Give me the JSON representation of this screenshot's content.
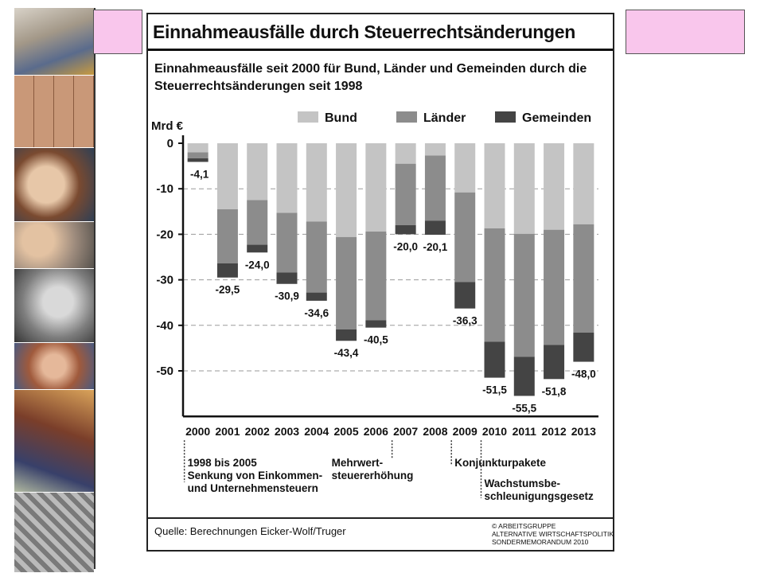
{
  "figure": {
    "title": "Einnahmeausfälle durch Steuerrechtsänderungen",
    "subtitle": "Einnahmeausfälle seit 2000 für Bund, Länder und Gemeinden durch die Steuerrechtsänderungen seit 1998",
    "source": "Quelle:  Berechnungen Eicker-Wolf/Truger",
    "credit_lines": [
      "© ARBEITSGRUPPE",
      "ALTERNATIVE WIRTSCHAFTSPOLITIK",
      "SONDERMEMORANDUM 2010"
    ]
  },
  "chart_data": {
    "type": "bar",
    "stacked": true,
    "direction": "negative",
    "ylabel": "Mrd €",
    "ylim": [
      -60,
      0
    ],
    "yticks": [
      0,
      -10,
      -20,
      -30,
      -40,
      -50
    ],
    "grid": true,
    "legend_position": "top",
    "categories": [
      "2000",
      "2001",
      "2002",
      "2003",
      "2004",
      "2005",
      "2006",
      "2007",
      "2008",
      "2009",
      "2010",
      "2011",
      "2012",
      "2013"
    ],
    "series": [
      {
        "name": "Bund",
        "color": "#c4c4c4",
        "values": [
          -2.0,
          -14.5,
          -12.5,
          -15.3,
          -17.2,
          -20.6,
          -19.4,
          -4.5,
          -2.7,
          -10.8,
          -18.7,
          -19.9,
          -19.0,
          -17.8
        ]
      },
      {
        "name": "Länder",
        "color": "#8c8c8c",
        "values": [
          -1.3,
          -11.9,
          -9.8,
          -13.1,
          -15.6,
          -20.3,
          -19.5,
          -13.5,
          -14.3,
          -19.7,
          -24.9,
          -27.0,
          -25.3,
          -23.8
        ]
      },
      {
        "name": "Gemeinden",
        "color": "#444444",
        "values": [
          -0.8,
          -3.1,
          -1.7,
          -2.5,
          -1.8,
          -2.5,
          -1.6,
          -2.0,
          -3.1,
          -5.8,
          -7.9,
          -8.6,
          -7.5,
          -6.4
        ]
      }
    ],
    "totals": [
      -4.1,
      -29.5,
      -24.0,
      -30.9,
      -34.6,
      -43.4,
      -40.5,
      -20.0,
      -20.1,
      -36.3,
      -51.5,
      -55.5,
      -51.8,
      -48.0
    ],
    "total_labels": [
      "-4,1",
      "-29,5",
      "-24,0",
      "-30,9",
      "-34,6",
      "-43,4",
      "-40,5",
      "-20,0",
      "-20,1",
      "-36,3",
      "-51,5",
      "-55,5",
      "-51,8",
      "-48,0"
    ],
    "tick_labels": [
      "0",
      "-10",
      "-20",
      "-30",
      "-40",
      "-50"
    ],
    "annotations": [
      {
        "year": "2000",
        "lines": [
          "1998 bis 2005",
          "Senkung von Einkommen-",
          "und Unternehmensteuern"
        ]
      },
      {
        "year": "2007",
        "lines": [
          "Mehrwert-",
          "steuererhöhung"
        ]
      },
      {
        "year": "2009",
        "lines": [
          "Konjunkturpakete"
        ]
      },
      {
        "year": "2010",
        "lines": [
          "Wachstumsbe-",
          "schleunigungsgesetz"
        ]
      }
    ]
  }
}
